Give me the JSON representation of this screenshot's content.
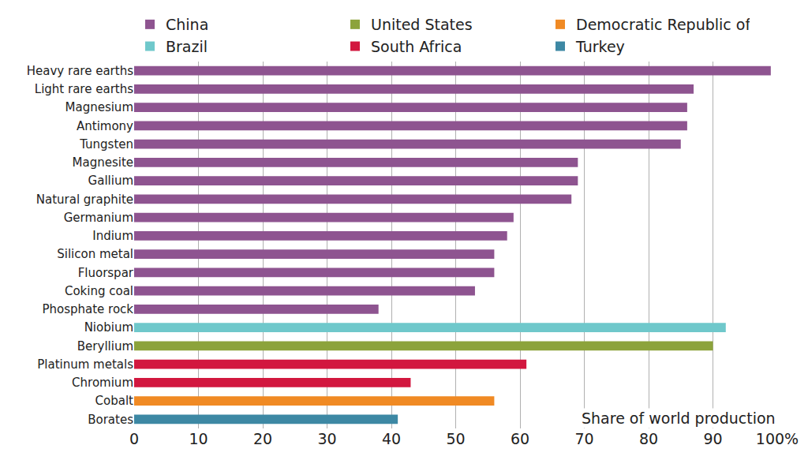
{
  "chart_data": {
    "type": "bar",
    "orientation": "horizontal",
    "xlabel": "Share of world production",
    "categories": [
      "Heavy rare earths",
      "Light rare earths",
      "Magnesium",
      "Antimony",
      "Tungsten",
      "Magnesite",
      "Gallium",
      "Natural graphite",
      "Germanium",
      "Indium",
      "Silicon metal",
      "Fluorspar",
      "Coking coal",
      "Phosphate rock",
      "Niobium",
      "Beryllium",
      "Platinum metals",
      "Chromium",
      "Cobalt",
      "Borates"
    ],
    "series": [
      {
        "name": "China",
        "color": "#8e5490",
        "values": [
          99,
          87,
          86,
          86,
          85,
          69,
          69,
          68,
          59,
          58,
          56,
          56,
          53,
          38,
          null,
          null,
          null,
          null,
          null,
          null
        ]
      },
      {
        "name": "United States",
        "color": "#8ca33b",
        "values": [
          null,
          null,
          null,
          null,
          null,
          null,
          null,
          null,
          null,
          null,
          null,
          null,
          null,
          null,
          null,
          90,
          null,
          null,
          null,
          null
        ]
      },
      {
        "name": "Democratic Republic of Congo",
        "color": "#f08a24",
        "values": [
          null,
          null,
          null,
          null,
          null,
          null,
          null,
          null,
          null,
          null,
          null,
          null,
          null,
          null,
          null,
          null,
          null,
          null,
          56,
          null
        ]
      },
      {
        "name": "Brazil",
        "color": "#6fc8cb",
        "values": [
          null,
          null,
          null,
          null,
          null,
          null,
          null,
          null,
          null,
          null,
          null,
          null,
          null,
          null,
          92,
          null,
          null,
          null,
          null,
          null
        ]
      },
      {
        "name": "South Africa",
        "color": "#d2173f",
        "values": [
          null,
          null,
          null,
          null,
          null,
          null,
          null,
          null,
          null,
          null,
          null,
          null,
          null,
          null,
          null,
          null,
          61,
          43,
          null,
          null
        ]
      },
      {
        "name": "Turkey",
        "color": "#3d88a4",
        "values": [
          null,
          null,
          null,
          null,
          null,
          null,
          null,
          null,
          null,
          null,
          null,
          null,
          null,
          null,
          null,
          null,
          null,
          null,
          null,
          41
        ]
      }
    ],
    "xlim": [
      0,
      100
    ],
    "xticks": [
      0,
      10,
      20,
      30,
      40,
      50,
      60,
      70,
      80,
      90,
      {
        "value": 100,
        "label": "100%"
      }
    ],
    "grid": true,
    "legend": "top"
  }
}
